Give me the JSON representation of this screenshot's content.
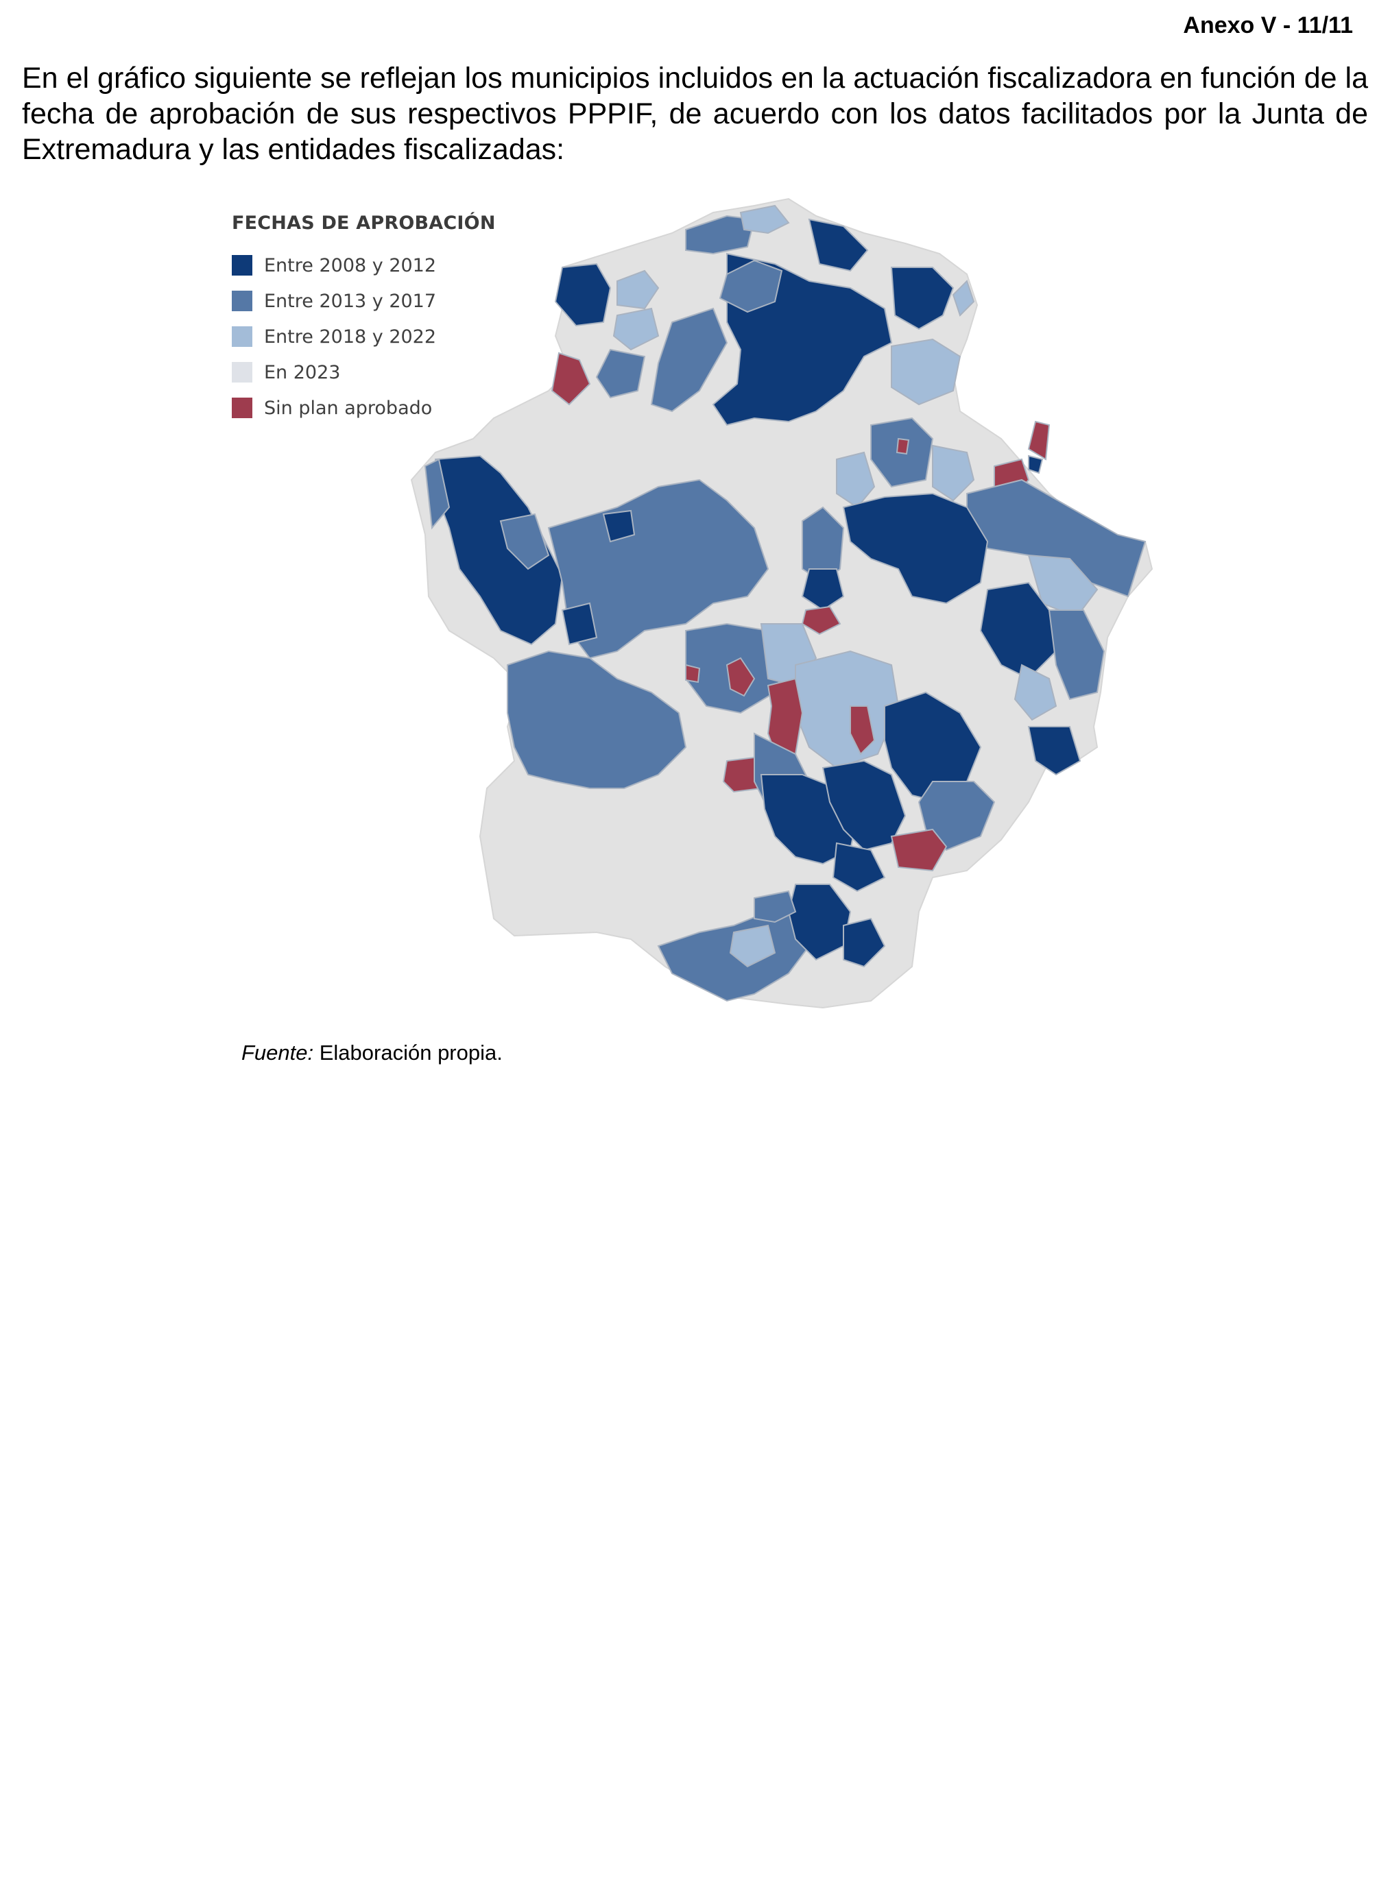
{
  "header": {
    "page_label": "Anexo V - 11/11"
  },
  "intro_text": "En el gráfico siguiente se reflejan los municipios incluidos en la actuación fiscalizadora en función de la fecha de aprobación de sus respectivos PPPIF, de acuerdo con los datos facilitados por la Junta de Extremadura y las entidades fiscalizadas:",
  "legend": {
    "title": "FECHAS DE APROBACIÓN",
    "items": [
      {
        "label": "Entre 2008 y 2012",
        "color": "#0e3a78"
      },
      {
        "label": "Entre 2013 y 2017",
        "color": "#5578a6"
      },
      {
        "label": "Entre 2018 y 2022",
        "color": "#a3bcd8"
      },
      {
        "label": "En 2023",
        "color": "#dfe2e8"
      },
      {
        "label": "Sin plan aprobado",
        "color": "#9e3c4e"
      }
    ]
  },
  "map": {
    "region": "Extremadura",
    "colors": {
      "outline": "#e2e2e2",
      "border": "#a9b3c1"
    }
  },
  "source": {
    "prefix": "Fuente:",
    "text": " Elaboración propia."
  }
}
